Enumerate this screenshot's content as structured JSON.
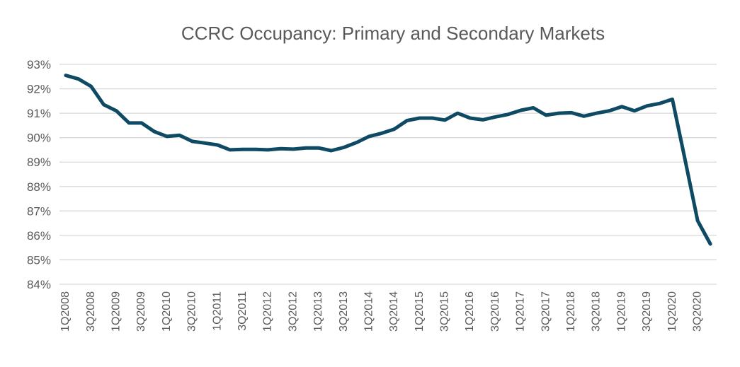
{
  "chart_data": {
    "type": "line",
    "title": "CCRC Occupancy: Primary and Secondary Markets",
    "xlabel": "",
    "ylabel": "",
    "ylim": [
      84,
      93
    ],
    "yticks": [
      "84%",
      "85%",
      "86%",
      "87%",
      "88%",
      "89%",
      "90%",
      "91%",
      "92%",
      "93%"
    ],
    "grid": true,
    "legend": "none",
    "line_color": "#0e4a63",
    "x": [
      "1Q2008",
      "2Q2008",
      "3Q2008",
      "4Q2008",
      "1Q2009",
      "2Q2009",
      "3Q2009",
      "4Q2009",
      "1Q2010",
      "2Q2010",
      "3Q2010",
      "4Q2010",
      "1Q2011",
      "2Q2011",
      "3Q2011",
      "4Q2011",
      "1Q2012",
      "2Q2012",
      "3Q2012",
      "4Q2012",
      "1Q2013",
      "2Q2013",
      "3Q2013",
      "4Q2013",
      "1Q2014",
      "2Q2014",
      "3Q2014",
      "4Q2014",
      "1Q2015",
      "2Q2015",
      "3Q2015",
      "4Q2015",
      "1Q2016",
      "2Q2016",
      "3Q2016",
      "4Q2016",
      "1Q2017",
      "2Q2017",
      "3Q2017",
      "4Q2017",
      "1Q2018",
      "2Q2018",
      "3Q2018",
      "4Q2018",
      "1Q2019",
      "2Q2019",
      "3Q2019",
      "4Q2019",
      "1Q2020",
      "2Q2020",
      "3Q2020",
      "4Q2020"
    ],
    "xtick_labels": [
      "1Q2008",
      "3Q2008",
      "1Q2009",
      "3Q2009",
      "1Q2010",
      "3Q2010",
      "1Q2011",
      "3Q2011",
      "1Q2012",
      "3Q2012",
      "1Q2013",
      "3Q2013",
      "1Q2014",
      "3Q2014",
      "1Q2015",
      "3Q2015",
      "1Q2016",
      "3Q2016",
      "1Q2017",
      "3Q2017",
      "1Q2018",
      "3Q2018",
      "1Q2019",
      "3Q2019",
      "1Q2020",
      "3Q2020"
    ],
    "series": [
      {
        "values": [
          92.55,
          92.4,
          92.1,
          91.35,
          91.1,
          90.6,
          90.6,
          90.25,
          90.05,
          90.1,
          89.85,
          89.78,
          89.7,
          89.5,
          89.52,
          89.52,
          89.5,
          89.55,
          89.53,
          89.58,
          89.58,
          89.47,
          89.6,
          89.8,
          90.05,
          90.18,
          90.35,
          90.7,
          90.8,
          90.8,
          90.72,
          91.0,
          90.8,
          90.73,
          90.85,
          90.95,
          91.12,
          91.22,
          90.92,
          91.0,
          91.02,
          90.88,
          91.0,
          91.1,
          91.27,
          91.1,
          91.3,
          91.4,
          91.57,
          89.1,
          86.6,
          85.65
        ]
      }
    ]
  }
}
